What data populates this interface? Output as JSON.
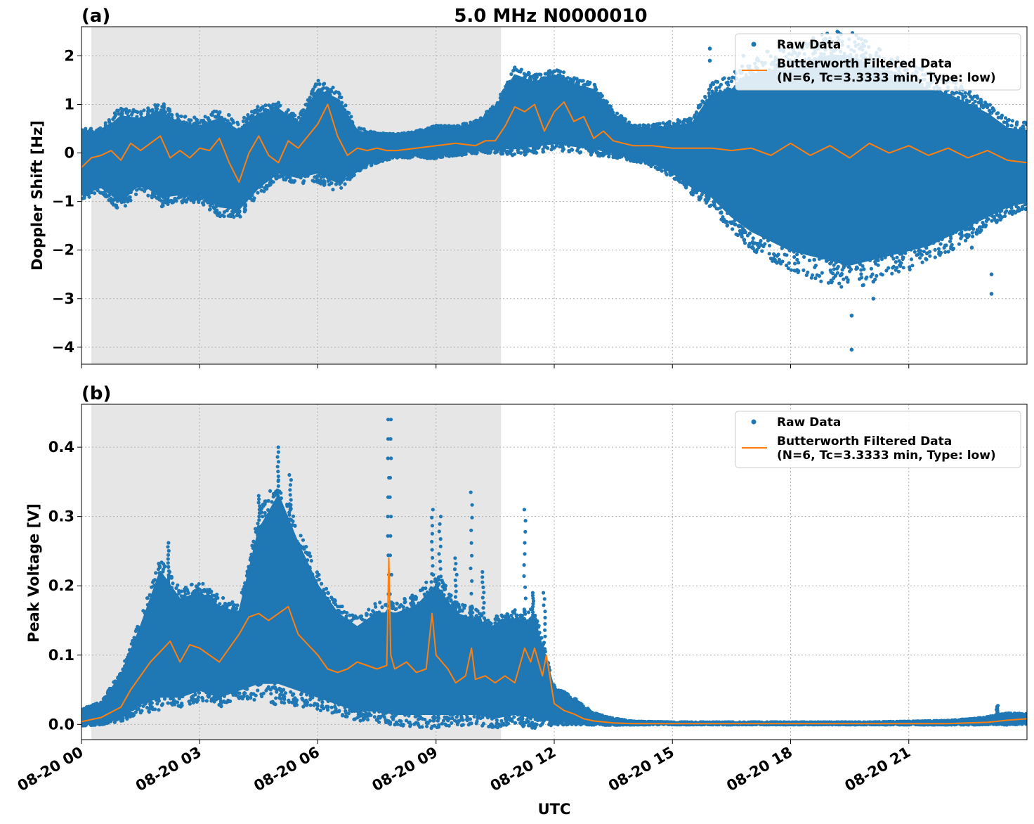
{
  "figure": {
    "title": "5.0 MHz N0000010",
    "xlabel": "UTC"
  },
  "colors": {
    "raw": "#1f77b4",
    "filtered": "#ff7f0e",
    "shade": "#e6e6e6",
    "grid": "#b0b0b0"
  },
  "chart_data": [
    {
      "type": "scatter",
      "panel_label": "(a)",
      "ylabel": "Doppler Shift [Hz]",
      "x_unit": "hours since 08-20 00:00 UTC",
      "xlim": [
        0,
        24
      ],
      "ylim": [
        -4.35,
        2.6
      ],
      "x_ticks": [
        0,
        3,
        6,
        9,
        12,
        15,
        18,
        21
      ],
      "y_ticks": [
        2,
        1,
        0,
        -1,
        -2,
        -3,
        -4
      ],
      "y_tick_labels": [
        "2",
        "1",
        "0",
        "−1",
        "−2",
        "−3",
        "−4"
      ],
      "grid": true,
      "legend_position": "top-right",
      "shaded_x_range": [
        0.25,
        10.65
      ],
      "series": [
        {
          "name": "Raw Data",
          "marker": "point",
          "envelope": {
            "x": [
              0,
              0.5,
              1,
              1.5,
              2,
              2.5,
              3,
              3.5,
              4,
              4.5,
              5,
              5.5,
              6,
              6.5,
              7,
              7.5,
              8,
              8.5,
              9,
              9.5,
              10,
              10.5,
              11,
              11.5,
              12,
              12.5,
              13,
              13.5,
              14,
              14.5,
              15,
              15.5,
              16,
              16.5,
              17,
              17.5,
              18,
              18.5,
              19,
              19.5,
              20,
              20.5,
              21,
              21.5,
              22,
              22.5,
              23,
              23.5,
              24
            ],
            "upper": [
              0.35,
              0.4,
              0.75,
              0.7,
              0.85,
              0.6,
              0.55,
              0.7,
              0.45,
              0.8,
              0.9,
              0.6,
              1.3,
              1.1,
              0.45,
              0.35,
              0.35,
              0.4,
              0.5,
              0.5,
              0.6,
              0.9,
              1.6,
              1.45,
              1.6,
              1.4,
              1.3,
              0.8,
              0.5,
              0.5,
              0.55,
              0.6,
              1.2,
              1.3,
              1.6,
              1.7,
              1.7,
              1.9,
              2.0,
              2.0,
              1.8,
              1.6,
              1.5,
              1.3,
              1.2,
              1.0,
              0.8,
              0.5,
              0.45
            ],
            "lower": [
              -0.85,
              -0.7,
              -1.0,
              -0.6,
              -0.9,
              -0.85,
              -0.85,
              -1.1,
              -1.15,
              -0.7,
              -0.4,
              -0.5,
              -0.4,
              -0.6,
              -0.3,
              -0.15,
              -0.05,
              -0.05,
              -0.05,
              0.0,
              0.05,
              0.1,
              0.1,
              0.15,
              0.2,
              0.15,
              0.1,
              0.0,
              -0.1,
              -0.2,
              -0.4,
              -0.7,
              -0.9,
              -1.3,
              -1.6,
              -1.8,
              -2.0,
              -2.1,
              -2.2,
              -2.3,
              -2.2,
              -2.1,
              -2.0,
              -1.9,
              -1.7,
              -1.5,
              -1.3,
              -1.1,
              -1.0
            ]
          },
          "outliers": [
            {
              "x": 19.55,
              "y": -4.05
            },
            {
              "x": 19.55,
              "y": -3.35
            },
            {
              "x": 20.1,
              "y": -3.0
            },
            {
              "x": 20.1,
              "y": -2.65
            },
            {
              "x": 23.1,
              "y": -2.9
            },
            {
              "x": 23.1,
              "y": -2.5
            },
            {
              "x": 18.6,
              "y": -2.2
            },
            {
              "x": 17.6,
              "y": -2.2
            },
            {
              "x": 22.6,
              "y": -1.95
            },
            {
              "x": 15.95,
              "y": 2.15
            },
            {
              "x": 15.95,
              "y": 1.9
            },
            {
              "x": 16.8,
              "y": 2.0
            },
            {
              "x": 18.0,
              "y": 1.9
            },
            {
              "x": 19.1,
              "y": 2.1
            }
          ]
        },
        {
          "name": "Butterworth Filtered Data\n(N=6, Tc=3.3333 min, Type: low)",
          "marker": "line",
          "x": [
            0,
            0.25,
            0.5,
            0.75,
            1,
            1.25,
            1.5,
            1.75,
            2,
            2.25,
            2.5,
            2.75,
            3,
            3.25,
            3.5,
            3.75,
            4,
            4.25,
            4.5,
            4.75,
            5,
            5.25,
            5.5,
            5.75,
            6,
            6.25,
            6.5,
            6.75,
            7,
            7.25,
            7.5,
            7.75,
            8,
            8.5,
            9,
            9.5,
            10,
            10.25,
            10.5,
            10.75,
            11,
            11.25,
            11.5,
            11.75,
            12,
            12.25,
            12.5,
            12.75,
            13,
            13.25,
            13.5,
            14,
            14.5,
            15,
            15.5,
            16,
            16.5,
            17,
            17.5,
            18,
            18.5,
            19,
            19.5,
            20,
            20.5,
            21,
            21.5,
            22,
            22.5,
            23,
            23.5,
            24
          ],
          "y": [
            -0.3,
            -0.1,
            -0.05,
            0.05,
            -0.15,
            0.2,
            0.05,
            0.2,
            0.35,
            -0.1,
            0.05,
            -0.1,
            0.1,
            0.05,
            0.3,
            -0.2,
            -0.6,
            0.0,
            0.35,
            -0.05,
            -0.2,
            0.25,
            0.1,
            0.35,
            0.6,
            1.0,
            0.35,
            -0.05,
            0.1,
            0.05,
            0.1,
            0.05,
            0.05,
            0.1,
            0.15,
            0.2,
            0.15,
            0.25,
            0.25,
            0.55,
            0.95,
            0.85,
            1.0,
            0.45,
            0.85,
            1.05,
            0.65,
            0.75,
            0.3,
            0.45,
            0.25,
            0.15,
            0.15,
            0.1,
            0.1,
            0.1,
            0.05,
            0.1,
            -0.05,
            0.2,
            -0.05,
            0.15,
            -0.1,
            0.2,
            0.0,
            0.15,
            -0.05,
            0.1,
            -0.1,
            0.05,
            -0.15,
            -0.2
          ]
        }
      ]
    },
    {
      "type": "scatter",
      "panel_label": "(b)",
      "ylabel": "Peak Voltage [V]",
      "x_unit": "hours since 08-20 00:00 UTC",
      "xlim": [
        0,
        24
      ],
      "ylim": [
        -0.022,
        0.462
      ],
      "x_ticks": [
        0,
        3,
        6,
        9,
        12,
        15,
        18,
        21
      ],
      "x_tick_labels": [
        "08-20 00",
        "08-20 03",
        "08-20 06",
        "08-20 09",
        "08-20 12",
        "08-20 15",
        "08-20 18",
        "08-20 21"
      ],
      "y_ticks": [
        0.4,
        0.3,
        0.2,
        0.1,
        0.0
      ],
      "y_tick_labels": [
        "0.4",
        "0.3",
        "0.2",
        "0.1",
        "0.0"
      ],
      "grid": true,
      "legend_position": "top-right",
      "shaded_x_range": [
        0.25,
        10.65
      ],
      "series": [
        {
          "name": "Raw Data",
          "marker": "point",
          "envelope": {
            "x": [
              0,
              0.5,
              1,
              1.5,
              2,
              2.5,
              3,
              3.5,
              4,
              4.5,
              5,
              5.5,
              6,
              6.5,
              7,
              7.5,
              8,
              8.5,
              9,
              9.5,
              10,
              10.5,
              11,
              11.5,
              12,
              12.5,
              13,
              13.5,
              14,
              15,
              16,
              17,
              18,
              19,
              20,
              21,
              22,
              22.5,
              23,
              23.5,
              24
            ],
            "upper": [
              0.02,
              0.03,
              0.07,
              0.14,
              0.22,
              0.18,
              0.19,
              0.17,
              0.16,
              0.28,
              0.33,
              0.26,
              0.2,
              0.16,
              0.14,
              0.16,
              0.16,
              0.17,
              0.2,
              0.16,
              0.15,
              0.14,
              0.15,
              0.15,
              0.05,
              0.035,
              0.015,
              0.008,
              0.004,
              0.003,
              0.003,
              0.003,
              0.003,
              0.003,
              0.003,
              0.004,
              0.005,
              0.007,
              0.01,
              0.015,
              0.014
            ],
            "lower": [
              0.0,
              0.003,
              0.01,
              0.03,
              0.04,
              0.04,
              0.05,
              0.04,
              0.05,
              0.06,
              0.06,
              0.05,
              0.04,
              0.03,
              0.02,
              0.02,
              0.015,
              0.015,
              0.015,
              0.015,
              0.015,
              0.01,
              0.015,
              0.01,
              0.005,
              0.003,
              0.001,
              0.0,
              0.0,
              0.0,
              0.0,
              0.0,
              0.0,
              0.0,
              0.0,
              0.0,
              0.0,
              0.0,
              0.001,
              0.001,
              0.002
            ]
          },
          "spikes": [
            {
              "x": 2.2,
              "y": 0.262
            },
            {
              "x": 4.5,
              "y": 0.33
            },
            {
              "x": 5.0,
              "y": 0.4
            },
            {
              "x": 5.3,
              "y": 0.36
            },
            {
              "x": 7.8,
              "y": 0.44
            },
            {
              "x": 7.85,
              "y": 0.44
            },
            {
              "x": 8.9,
              "y": 0.31
            },
            {
              "x": 9.1,
              "y": 0.3
            },
            {
              "x": 9.5,
              "y": 0.24
            },
            {
              "x": 9.9,
              "y": 0.335
            },
            {
              "x": 10.2,
              "y": 0.22
            },
            {
              "x": 11.25,
              "y": 0.31
            },
            {
              "x": 11.45,
              "y": 0.19
            },
            {
              "x": 11.75,
              "y": 0.19
            },
            {
              "x": 23.25,
              "y": 0.027
            }
          ]
        },
        {
          "name": "Butterworth Filtered Data\n(N=6, Tc=3.3333 min, Type: low)",
          "marker": "line",
          "x": [
            0,
            0.5,
            1,
            1.25,
            1.5,
            1.75,
            2,
            2.25,
            2.5,
            2.75,
            3,
            3.25,
            3.5,
            3.75,
            4,
            4.25,
            4.5,
            4.75,
            5,
            5.25,
            5.5,
            5.75,
            6,
            6.25,
            6.5,
            6.75,
            7,
            7.25,
            7.5,
            7.75,
            7.8,
            7.85,
            7.95,
            8.25,
            8.5,
            8.75,
            8.9,
            9.0,
            9.15,
            9.3,
            9.5,
            9.75,
            9.9,
            10.0,
            10.25,
            10.5,
            10.75,
            11,
            11.25,
            11.4,
            11.5,
            11.7,
            11.8,
            12,
            12.25,
            12.5,
            12.75,
            13,
            13.5,
            14,
            15,
            16,
            17,
            18,
            19,
            20,
            21,
            22,
            22.5,
            23,
            23.5,
            24
          ],
          "y": [
            0.004,
            0.01,
            0.025,
            0.05,
            0.07,
            0.09,
            0.105,
            0.12,
            0.09,
            0.115,
            0.11,
            0.1,
            0.09,
            0.11,
            0.13,
            0.155,
            0.16,
            0.15,
            0.16,
            0.17,
            0.13,
            0.115,
            0.1,
            0.08,
            0.075,
            0.08,
            0.09,
            0.085,
            0.08,
            0.085,
            0.24,
            0.1,
            0.08,
            0.09,
            0.075,
            0.08,
            0.16,
            0.1,
            0.09,
            0.08,
            0.06,
            0.07,
            0.11,
            0.065,
            0.07,
            0.06,
            0.07,
            0.06,
            0.11,
            0.09,
            0.11,
            0.07,
            0.1,
            0.03,
            0.02,
            0.015,
            0.008,
            0.005,
            0.002,
            0.001,
            0.001,
            0.001,
            0.001,
            0.001,
            0.001,
            0.001,
            0.001,
            0.001,
            0.002,
            0.003,
            0.006,
            0.008
          ]
        }
      ]
    }
  ]
}
